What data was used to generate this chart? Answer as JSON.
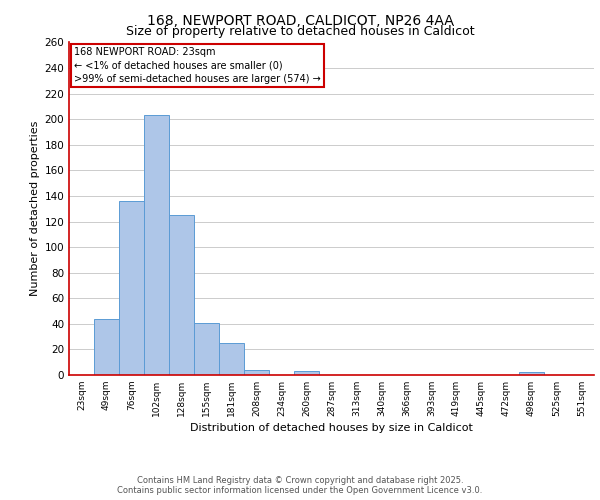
{
  "title_line1": "168, NEWPORT ROAD, CALDICOT, NP26 4AA",
  "title_line2": "Size of property relative to detached houses in Caldicot",
  "xlabel": "Distribution of detached houses by size in Caldicot",
  "ylabel": "Number of detached properties",
  "footnote1": "Contains HM Land Registry data © Crown copyright and database right 2025.",
  "footnote2": "Contains public sector information licensed under the Open Government Licence v3.0.",
  "annotation_line1": "168 NEWPORT ROAD: 23sqm",
  "annotation_line2": "← <1% of detached houses are smaller (0)",
  "annotation_line3": ">99% of semi-detached houses are larger (574) →",
  "bar_labels": [
    "23sqm",
    "49sqm",
    "76sqm",
    "102sqm",
    "128sqm",
    "155sqm",
    "181sqm",
    "208sqm",
    "234sqm",
    "260sqm",
    "287sqm",
    "313sqm",
    "340sqm",
    "366sqm",
    "393sqm",
    "419sqm",
    "445sqm",
    "472sqm",
    "498sqm",
    "525sqm",
    "551sqm"
  ],
  "bar_values": [
    0,
    44,
    136,
    203,
    125,
    41,
    25,
    4,
    0,
    3,
    0,
    0,
    0,
    0,
    0,
    0,
    0,
    0,
    2,
    0,
    0
  ],
  "bar_color": "#aec6e8",
  "bar_edge_color": "#5b9bd5",
  "annotation_box_color": "#ffffff",
  "annotation_box_edge": "#cc0000",
  "ylim": [
    0,
    260
  ],
  "yticks": [
    0,
    20,
    40,
    60,
    80,
    100,
    120,
    140,
    160,
    180,
    200,
    220,
    240,
    260
  ],
  "grid_color": "#cccccc",
  "spine_color": "#cc0000",
  "bg_color": "#ffffff",
  "title_fontsize": 10,
  "subtitle_fontsize": 9,
  "ylabel_fontsize": 8,
  "xlabel_fontsize": 8,
  "tick_fontsize": 7.5,
  "xtick_fontsize": 6.5,
  "annotation_fontsize": 7
}
